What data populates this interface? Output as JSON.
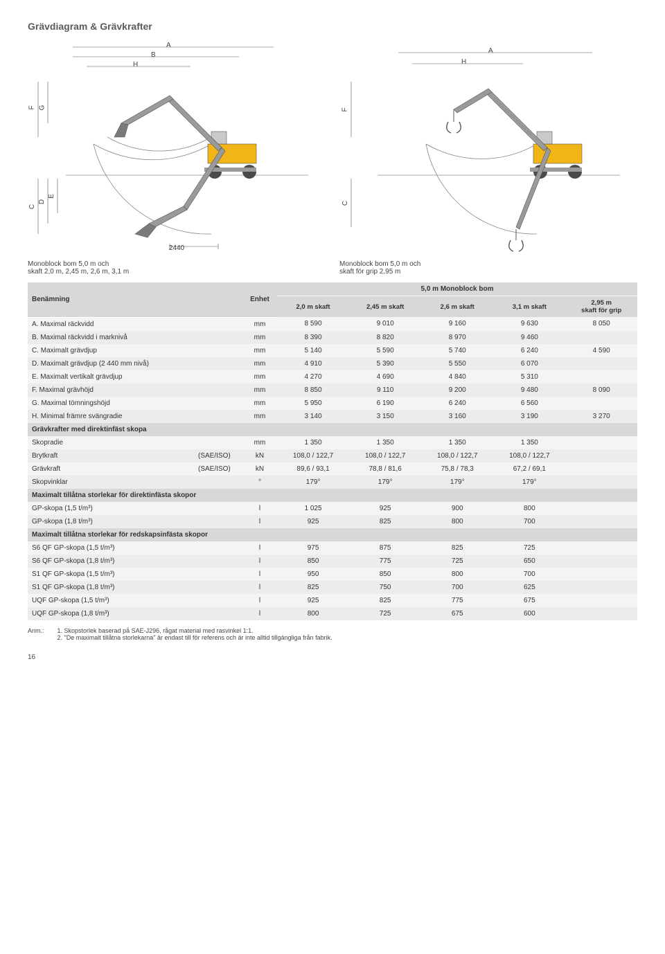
{
  "title": "Grävdiagram & Grävkrafter",
  "diagram_left": {
    "caption": "Monoblock bom 5,0 m och\nskaft 2,0 m, 2,45 m, 2,6 m, 3,1 m",
    "dim_2440": "2440",
    "labels": {
      "A": "A",
      "B": "B",
      "H": "H",
      "F": "F",
      "G": "G",
      "C": "C",
      "D": "D",
      "E": "E"
    }
  },
  "diagram_right": {
    "caption": "Monoblock bom 5,0 m och\nskaft för grip 2,95 m",
    "labels": {
      "A": "A",
      "H": "H",
      "F": "F",
      "C": "C"
    }
  },
  "table": {
    "header": {
      "name": "Benämning",
      "unit": "Enhet",
      "group": "5,0 m Monoblock bom",
      "cols": [
        "2,0 m skaft",
        "2,45 m skaft",
        "2,6 m skaft",
        "3,1 m skaft",
        "2,95 m\nskaft för grip"
      ]
    },
    "rows_main": [
      {
        "n": "A. Maximal räckvidd",
        "u": "mm",
        "v": [
          "8 590",
          "9 010",
          "9 160",
          "9 630",
          "8 050"
        ]
      },
      {
        "n": "B. Maximal räckvidd i marknivå",
        "u": "mm",
        "v": [
          "8 390",
          "8 820",
          "8 970",
          "9 460",
          ""
        ]
      },
      {
        "n": "C. Maximalt grävdjup",
        "u": "mm",
        "v": [
          "5 140",
          "5 590",
          "5 740",
          "6 240",
          "4 590"
        ]
      },
      {
        "n": "D. Maximalt grävdjup (2 440 mm nivå)",
        "u": "mm",
        "v": [
          "4 910",
          "5 390",
          "5 550",
          "6 070",
          ""
        ]
      },
      {
        "n": "E. Maximalt vertikalt grävdjup",
        "u": "mm",
        "v": [
          "4 270",
          "4 690",
          "4 840",
          "5 310",
          ""
        ]
      },
      {
        "n": "F. Maximal grävhöjd",
        "u": "mm",
        "v": [
          "8 850",
          "9 110",
          "9 200",
          "9 480",
          "8 090"
        ]
      },
      {
        "n": "G. Maximal tömningshöjd",
        "u": "mm",
        "v": [
          "5 950",
          "6 190",
          "6 240",
          "6 560",
          ""
        ]
      },
      {
        "n": "H. Minimal främre svängradie",
        "u": "mm",
        "v": [
          "3 140",
          "3 150",
          "3 160",
          "3 190",
          "3 270"
        ]
      }
    ],
    "section2": {
      "title": "Grävkrafter med direktinfäst skopa",
      "rows": [
        {
          "n": "Skopradie",
          "u2": "",
          "u": "mm",
          "v": [
            "1 350",
            "1 350",
            "1 350",
            "1 350",
            ""
          ]
        },
        {
          "n": "Brytkraft",
          "u2": "(SAE/ISO)",
          "u": "kN",
          "v": [
            "108,0 / 122,7",
            "108,0 / 122,7",
            "108,0 / 122,7",
            "108,0 / 122,7",
            ""
          ]
        },
        {
          "n": "Grävkraft",
          "u2": "(SAE/ISO)",
          "u": "kN",
          "v": [
            "89,6 / 93,1",
            "78,8 / 81,6",
            "75,8 / 78,3",
            "67,2 / 69,1",
            ""
          ]
        },
        {
          "n": "Skopvinklar",
          "u2": "",
          "u": "°",
          "v": [
            "179°",
            "179°",
            "179°",
            "179°",
            ""
          ]
        }
      ]
    },
    "section3": {
      "title": "Maximalt tillåtna storlekar för direktinfästa skopor",
      "rows": [
        {
          "n": "GP-skopa (1,5 t/m³)",
          "u": "l",
          "v": [
            "1 025",
            "925",
            "900",
            "800",
            ""
          ]
        },
        {
          "n": "GP-skopa (1,8 t/m³)",
          "u": "l",
          "v": [
            "925",
            "825",
            "800",
            "700",
            ""
          ]
        }
      ]
    },
    "section4": {
      "title": "Maximalt tillåtna storlekar för redskapsinfästa skopor",
      "rows": [
        {
          "n": "S6 QF GP-skopa (1,5 t/m³)",
          "u": "l",
          "v": [
            "975",
            "875",
            "825",
            "725",
            ""
          ]
        },
        {
          "n": "S6 QF GP-skopa (1,8 t/m³)",
          "u": "l",
          "v": [
            "850",
            "775",
            "725",
            "650",
            ""
          ]
        },
        {
          "n": "S1 QF GP-skopa (1,5 t/m³)",
          "u": "l",
          "v": [
            "950",
            "850",
            "800",
            "700",
            ""
          ]
        },
        {
          "n": "S1 QF GP-skopa (1,8 t/m³)",
          "u": "l",
          "v": [
            "825",
            "750",
            "700",
            "625",
            ""
          ]
        },
        {
          "n": "UQF GP-skopa (1,5 t/m³)",
          "u": "l",
          "v": [
            "925",
            "825",
            "775",
            "675",
            ""
          ]
        },
        {
          "n": "UQF GP-skopa (1,8 t/m³)",
          "u": "l",
          "v": [
            "800",
            "725",
            "675",
            "600",
            ""
          ]
        }
      ]
    }
  },
  "notes": {
    "label": "Anm.:",
    "items": [
      "1. Skopstorlek baserad på SAE-J296, rågat material med rasvinkel 1:1.",
      "2. \"De maximalt tillåtna storlekarna\" är endast till för referens och är inte alltid tillgängliga från fabrik."
    ]
  },
  "page_num": "16",
  "colors": {
    "header_bg": "#d8d8d8",
    "row_odd": "#f4f4f4",
    "row_even": "#ececec",
    "excavator_body": "#f2b518",
    "excavator_arm": "#9a9a9a",
    "excavator_dark": "#4a4a4a"
  }
}
